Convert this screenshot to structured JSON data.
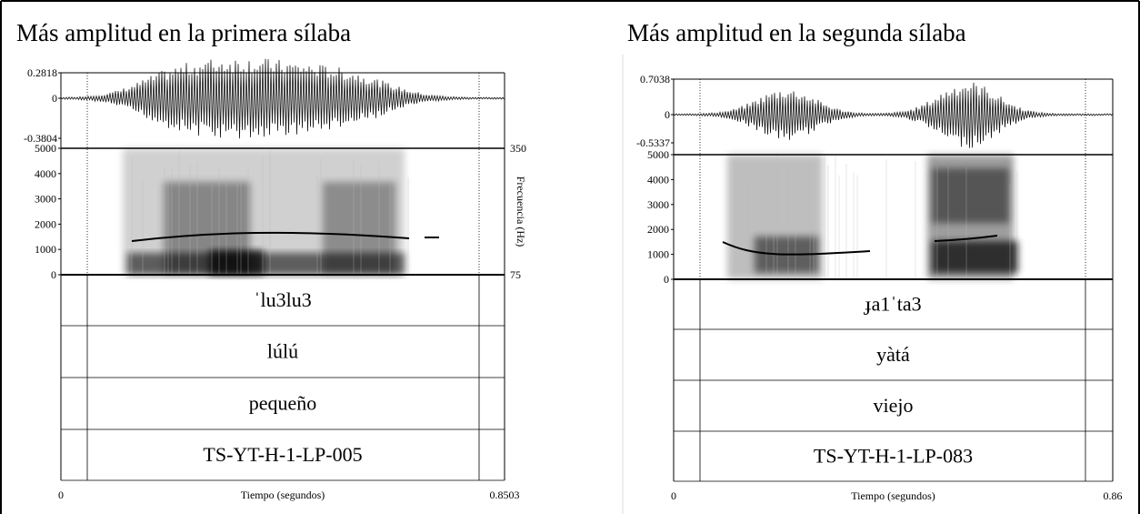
{
  "panels": [
    {
      "title": "Más amplitud en la primera sílaba",
      "waveform_labels": [
        "0.2818",
        "0",
        "-0.3804"
      ],
      "spectrogram_labels": [
        "5000",
        "4000",
        "3000",
        "2000",
        "1000",
        "0"
      ],
      "pitch_labels": [
        "350",
        "75"
      ],
      "pitch_axis_label": "Frecuencia (Hz)",
      "tiers": [
        "ˈlu3lu3",
        "lúlú",
        "pequeño",
        "TS-YT-H-1-LP-005"
      ],
      "x_labels": [
        "0",
        "0.8503"
      ],
      "x_axis_label": "Tiempo (segundos)"
    },
    {
      "title": "Más amplitud en la segunda sílaba",
      "waveform_labels": [
        "0.7038",
        "0",
        "-0.5337"
      ],
      "spectrogram_labels": [
        "5000",
        "4000",
        "3000",
        "2000",
        "1000",
        "0"
      ],
      "tiers": [
        "ɟa1ˈta3",
        "yàtá",
        "viejo",
        "TS-YT-H-1-LP-083"
      ],
      "x_labels": [
        "0",
        "0.86"
      ],
      "x_axis_label": "Tiempo (segundos)"
    }
  ]
}
